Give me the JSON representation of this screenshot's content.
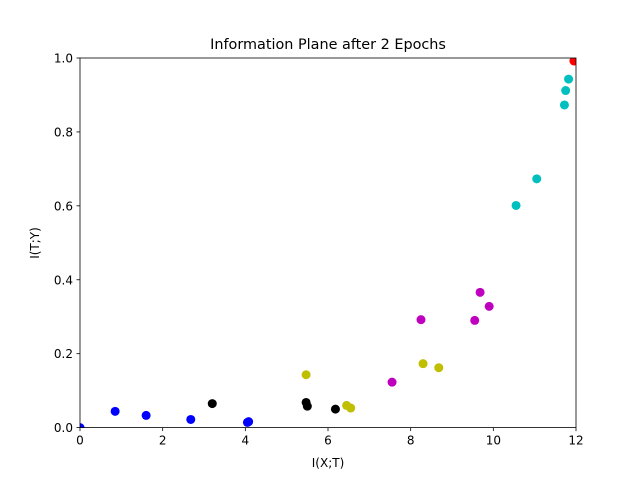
{
  "chart_data": {
    "type": "scatter",
    "title": "Information Plane after 2 Epochs",
    "xlabel": "I(X;T)",
    "ylabel": "I(T;Y)",
    "xlim": [
      0,
      12
    ],
    "ylim": [
      0,
      1.0
    ],
    "xticks": [
      "0",
      "2",
      "4",
      "6",
      "8",
      "10",
      "12"
    ],
    "yticks": [
      "0.0",
      "0.2",
      "0.4",
      "0.6",
      "0.8",
      "1.0"
    ],
    "grid": false,
    "legend": "none",
    "series": [
      {
        "color": "#0000ff",
        "points": [
          [
            0.0,
            0.0
          ],
          [
            0.85,
            0.044
          ],
          [
            1.6,
            0.033
          ],
          [
            2.68,
            0.022
          ],
          [
            4.05,
            0.014
          ],
          [
            4.08,
            0.016
          ]
        ]
      },
      {
        "color": "#000000",
        "points": [
          [
            3.2,
            0.065
          ],
          [
            5.47,
            0.068
          ],
          [
            5.5,
            0.058
          ],
          [
            6.18,
            0.05
          ]
        ]
      },
      {
        "color": "#bfbf00",
        "points": [
          [
            5.47,
            0.143
          ],
          [
            6.45,
            0.06
          ],
          [
            6.55,
            0.053
          ],
          [
            8.3,
            0.173
          ],
          [
            8.68,
            0.162
          ]
        ]
      },
      {
        "color": "#bf00bf",
        "points": [
          [
            7.55,
            0.123
          ],
          [
            8.25,
            0.292
          ],
          [
            9.55,
            0.29
          ],
          [
            9.68,
            0.366
          ],
          [
            9.9,
            0.328
          ]
        ]
      },
      {
        "color": "#00bfbf",
        "points": [
          [
            10.55,
            0.601
          ],
          [
            11.05,
            0.673
          ],
          [
            11.72,
            0.873
          ],
          [
            11.75,
            0.912
          ],
          [
            11.82,
            0.943
          ]
        ]
      },
      {
        "color": "#ff0000",
        "points": [
          [
            11.95,
            0.992
          ]
        ]
      }
    ]
  }
}
